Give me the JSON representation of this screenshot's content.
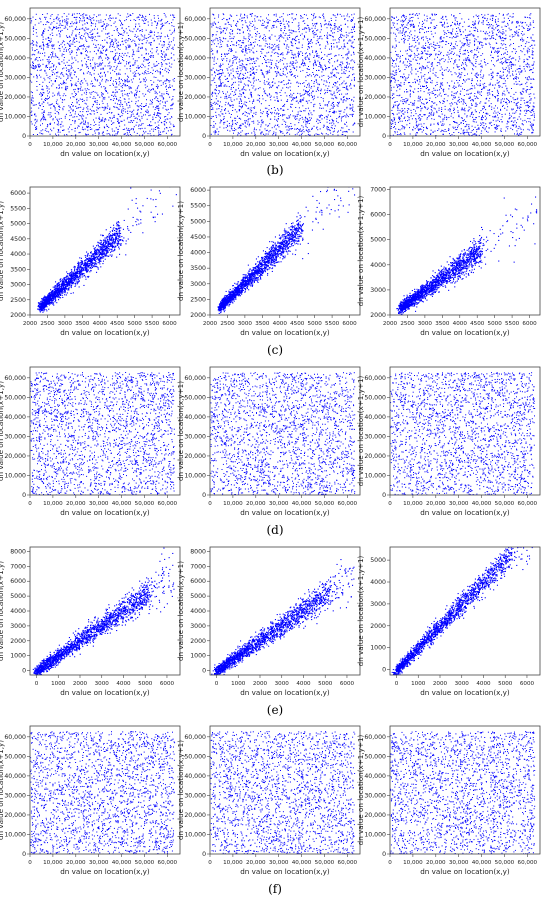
{
  "figure": {
    "rows": [
      {
        "label": "(b)"
      },
      {
        "label": "(c)"
      },
      {
        "label": "(d)"
      },
      {
        "label": "(e)"
      },
      {
        "label": "(f)"
      }
    ]
  },
  "chart_data": [
    {
      "id": "b1",
      "type": "scatter",
      "distribution": "uniform",
      "point_color": "#0000ff",
      "xlabel": "dn value on location(x,y)",
      "ylabel": "dn value on location(x+1,y)",
      "xlim": [
        0,
        65535
      ],
      "ylim": [
        0,
        65535
      ],
      "xticks": [
        0,
        10000,
        20000,
        30000,
        40000,
        50000,
        60000
      ],
      "xtick_labels": [
        "0",
        "10,000",
        "20,000",
        "30,000",
        "40,000",
        "50,000",
        "60,000"
      ],
      "yticks": [
        0,
        10000,
        20000,
        30000,
        40000,
        50000,
        60000
      ],
      "ytick_labels": [
        "0",
        "10,000",
        "20,000",
        "30,000",
        "40,000",
        "50,000",
        "60,000"
      ]
    },
    {
      "id": "b2",
      "type": "scatter",
      "distribution": "uniform",
      "point_color": "#0000ff",
      "xlabel": "dn value on location(x,y)",
      "ylabel": "dn value on location(x,y+1)",
      "xlim": [
        0,
        65535
      ],
      "ylim": [
        0,
        65535
      ],
      "xticks": [
        0,
        10000,
        20000,
        30000,
        40000,
        50000,
        60000
      ],
      "xtick_labels": [
        "0",
        "10,000",
        "20,000",
        "30,000",
        "40,000",
        "50,000",
        "60,000"
      ],
      "yticks": [
        0,
        10000,
        20000,
        30000,
        40000,
        50000,
        60000
      ],
      "ytick_labels": [
        "0",
        "10,000",
        "20,000",
        "30,000",
        "40,000",
        "50,000",
        "60,000"
      ]
    },
    {
      "id": "b3",
      "type": "scatter",
      "distribution": "uniform",
      "point_color": "#0000ff",
      "xlabel": "dn value on location(x,y)",
      "ylabel": "dn value on location(x+1,y+1)",
      "xlim": [
        0,
        65535
      ],
      "ylim": [
        0,
        65535
      ],
      "xticks": [
        0,
        10000,
        20000,
        30000,
        40000,
        50000,
        60000
      ],
      "xtick_labels": [
        "0",
        "10,000",
        "20,000",
        "30,000",
        "40,000",
        "50,000",
        "60,000"
      ],
      "yticks": [
        0,
        10000,
        20000,
        30000,
        40000,
        50000,
        60000
      ],
      "ytick_labels": [
        "0",
        "10,000",
        "20,000",
        "30,000",
        "40,000",
        "50,000",
        "60,000"
      ]
    },
    {
      "id": "c1",
      "type": "scatter",
      "distribution": "correlated",
      "point_color": "#0000ff",
      "xlabel": "dn value on location(x,y)",
      "ylabel": "dn value on location(x+1,y)",
      "xlim": [
        2000,
        6300
      ],
      "ylim": [
        2000,
        6200
      ],
      "xticks": [
        2000,
        2500,
        3000,
        3500,
        4000,
        4500,
        5000,
        5500,
        6000
      ],
      "xtick_labels": [
        "2000",
        "2500",
        "3000",
        "3500",
        "4000",
        "4500",
        "5000",
        "5500",
        "6000"
      ],
      "yticks": [
        2000,
        2500,
        3000,
        3500,
        4000,
        4500,
        5000,
        5500,
        6000
      ],
      "ytick_labels": [
        "2000",
        "2500",
        "3000",
        "3500",
        "4000",
        "4500",
        "5000",
        "5500",
        "6000"
      ],
      "data_range_x": [
        2250,
        6200
      ],
      "trend": {
        "x": [
          2300,
          4600
        ],
        "y": [
          2300,
          4700
        ]
      }
    },
    {
      "id": "c2",
      "type": "scatter",
      "distribution": "correlated",
      "point_color": "#0000ff",
      "xlabel": "dn value on location(x,y)",
      "ylabel": "dn value on location(x,y+1)",
      "xlim": [
        2000,
        6300
      ],
      "ylim": [
        2000,
        6100
      ],
      "xticks": [
        2000,
        2500,
        3000,
        3500,
        4000,
        4500,
        5000,
        5500,
        6000
      ],
      "xtick_labels": [
        "2000",
        "2500",
        "3000",
        "3500",
        "4000",
        "4500",
        "5000",
        "5500",
        "6000"
      ],
      "yticks": [
        2000,
        2500,
        3000,
        3500,
        4000,
        4500,
        5000,
        5500,
        6000
      ],
      "ytick_labels": [
        "2000",
        "2500",
        "3000",
        "3500",
        "4000",
        "4500",
        "5000",
        "5500",
        "6000"
      ],
      "data_range_x": [
        2250,
        6200
      ],
      "trend": {
        "x": [
          2300,
          4600
        ],
        "y": [
          2300,
          4800
        ]
      }
    },
    {
      "id": "c3",
      "type": "scatter",
      "distribution": "correlated",
      "point_color": "#0000ff",
      "xlabel": "dn value on location(x,y)",
      "ylabel": "dn value on location(x+1,y+1)",
      "xlim": [
        2000,
        6300
      ],
      "ylim": [
        2000,
        7100
      ],
      "xticks": [
        2000,
        2500,
        3000,
        3500,
        4000,
        4500,
        5000,
        5500,
        6000
      ],
      "xtick_labels": [
        "2000",
        "2500",
        "3000",
        "3500",
        "4000",
        "4500",
        "5000",
        "5500",
        "6000"
      ],
      "yticks": [
        2000,
        3000,
        4000,
        5000,
        6000,
        7000
      ],
      "ytick_labels": [
        "2000",
        "3000",
        "4000",
        "5000",
        "6000",
        "7000"
      ],
      "data_range_x": [
        2250,
        6200
      ],
      "trend": {
        "x": [
          2300,
          4600
        ],
        "y": [
          2300,
          4600
        ]
      }
    },
    {
      "id": "d1",
      "type": "scatter",
      "distribution": "uniform",
      "point_color": "#0000ff",
      "xlabel": "dn value on location(x,y)",
      "ylabel": "dn value on location(x+1,y)",
      "xlim": [
        0,
        65535
      ],
      "ylim": [
        0,
        65535
      ],
      "xticks": [
        0,
        10000,
        20000,
        30000,
        40000,
        50000,
        60000
      ],
      "xtick_labels": [
        "0",
        "10,000",
        "20,000",
        "30,000",
        "40,000",
        "50,000",
        "60,000"
      ],
      "yticks": [
        0,
        10000,
        20000,
        30000,
        40000,
        50000,
        60000
      ],
      "ytick_labels": [
        "0",
        "10,000",
        "20,000",
        "30,000",
        "40,000",
        "50,000",
        "60,000"
      ]
    },
    {
      "id": "d2",
      "type": "scatter",
      "distribution": "uniform",
      "point_color": "#0000ff",
      "xlabel": "dn value on location(x,y)",
      "ylabel": "dn value on location(x,y+1)",
      "xlim": [
        0,
        65535
      ],
      "ylim": [
        0,
        65535
      ],
      "xticks": [
        0,
        10000,
        20000,
        30000,
        40000,
        50000,
        60000
      ],
      "xtick_labels": [
        "0",
        "10,000",
        "20,000",
        "30,000",
        "40,000",
        "50,000",
        "60,000"
      ],
      "yticks": [
        0,
        10000,
        20000,
        30000,
        40000,
        50000,
        60000
      ],
      "ytick_labels": [
        "0",
        "10,000",
        "20,000",
        "30,000",
        "40,000",
        "50,000",
        "60,000"
      ]
    },
    {
      "id": "d3",
      "type": "scatter",
      "distribution": "uniform",
      "point_color": "#0000ff",
      "xlabel": "dn value on location(x,y)",
      "ylabel": "dn value on location(x+1,y+1)",
      "xlim": [
        0,
        65535
      ],
      "ylim": [
        0,
        65535
      ],
      "xticks": [
        0,
        10000,
        20000,
        30000,
        40000,
        50000,
        60000
      ],
      "xtick_labels": [
        "0",
        "10,000",
        "20,000",
        "30,000",
        "40,000",
        "50,000",
        "60,000"
      ],
      "yticks": [
        0,
        10000,
        20000,
        30000,
        40000,
        50000,
        60000
      ],
      "ytick_labels": [
        "0",
        "10,000",
        "20,000",
        "30,000",
        "40,000",
        "50,000",
        "60,000"
      ]
    },
    {
      "id": "e1",
      "type": "scatter",
      "distribution": "correlated",
      "point_color": "#0000ff",
      "xlabel": "dn value on location(x,y)",
      "ylabel": "dn value on location(x+1,y)",
      "xlim": [
        -300,
        6600
      ],
      "ylim": [
        -300,
        8300
      ],
      "xticks": [
        0,
        1000,
        2000,
        3000,
        4000,
        5000,
        6000
      ],
      "xtick_labels": [
        "0",
        "1000",
        "2000",
        "3000",
        "4000",
        "5000",
        "6000"
      ],
      "yticks": [
        0,
        1000,
        2000,
        3000,
        4000,
        5000,
        6000,
        7000,
        8000
      ],
      "ytick_labels": [
        "0",
        "1000",
        "2000",
        "3000",
        "4000",
        "5000",
        "6000",
        "7000",
        "8000"
      ],
      "data_range_x": [
        0,
        6300
      ],
      "trend": {
        "x": [
          0,
          5200
        ],
        "y": [
          0,
          5300
        ]
      }
    },
    {
      "id": "e2",
      "type": "scatter",
      "distribution": "correlated",
      "point_color": "#0000ff",
      "xlabel": "dn value on location(x,y)",
      "ylabel": "dn value on location(x,y+1)",
      "xlim": [
        -300,
        6600
      ],
      "ylim": [
        -300,
        8300
      ],
      "xticks": [
        0,
        1000,
        2000,
        3000,
        4000,
        5000,
        6000
      ],
      "xtick_labels": [
        "0",
        "1000",
        "2000",
        "3000",
        "4000",
        "5000",
        "6000"
      ],
      "yticks": [
        0,
        1000,
        2000,
        3000,
        4000,
        5000,
        6000,
        7000,
        8000
      ],
      "ytick_labels": [
        "0",
        "1000",
        "2000",
        "3000",
        "4000",
        "5000",
        "6000",
        "7000",
        "8000"
      ],
      "data_range_x": [
        0,
        6300
      ],
      "trend": {
        "x": [
          0,
          5200
        ],
        "y": [
          0,
          5300
        ]
      }
    },
    {
      "id": "e3",
      "type": "scatter",
      "distribution": "correlated",
      "point_color": "#0000ff",
      "xlabel": "dn value on location(x,y)",
      "ylabel": "dn value on location(x+1,y+1)",
      "xlim": [
        -300,
        6600
      ],
      "ylim": [
        -250,
        5600
      ],
      "xticks": [
        0,
        1000,
        2000,
        3000,
        4000,
        5000,
        6000
      ],
      "xtick_labels": [
        "0",
        "1000",
        "2000",
        "3000",
        "4000",
        "5000",
        "6000"
      ],
      "yticks": [
        0,
        1000,
        2000,
        3000,
        4000,
        5000
      ],
      "ytick_labels": [
        "0",
        "1000",
        "2000",
        "3000",
        "4000",
        "5000"
      ],
      "data_range_x": [
        0,
        6300
      ],
      "trend": {
        "x": [
          0,
          5200
        ],
        "y": [
          0,
          5200
        ]
      }
    },
    {
      "id": "f1",
      "type": "scatter",
      "distribution": "uniform",
      "point_color": "#0000ff",
      "xlabel": "dn value on location(x,y)",
      "ylabel": "dn value on location(x+1,y)",
      "xlim": [
        0,
        65535
      ],
      "ylim": [
        0,
        65535
      ],
      "xticks": [
        0,
        10000,
        20000,
        30000,
        40000,
        50000,
        60000
      ],
      "xtick_labels": [
        "0",
        "10,000",
        "20,000",
        "30,000",
        "40,000",
        "50,000",
        "60,000"
      ],
      "yticks": [
        0,
        10000,
        20000,
        30000,
        40000,
        50000,
        60000
      ],
      "ytick_labels": [
        "0",
        "10,000",
        "20,000",
        "30,000",
        "40,000",
        "50,000",
        "60,000"
      ]
    },
    {
      "id": "f2",
      "type": "scatter",
      "distribution": "uniform",
      "point_color": "#0000ff",
      "xlabel": "dn value on location(x,y)",
      "ylabel": "dn value on location(x,y+1)",
      "xlim": [
        0,
        65535
      ],
      "ylim": [
        0,
        65535
      ],
      "xticks": [
        0,
        10000,
        20000,
        30000,
        40000,
        50000,
        60000
      ],
      "xtick_labels": [
        "0",
        "10,000",
        "20,000",
        "30,000",
        "40,000",
        "50,000",
        "60,000"
      ],
      "yticks": [
        0,
        10000,
        20000,
        30000,
        40000,
        50000,
        60000
      ],
      "ytick_labels": [
        "0",
        "10,000",
        "20,000",
        "30,000",
        "40,000",
        "50,000",
        "60,000"
      ]
    },
    {
      "id": "f3",
      "type": "scatter",
      "distribution": "uniform",
      "point_color": "#0000ff",
      "xlabel": "dn value on location(x,y)",
      "ylabel": "dn value on location(x+1,y+1)",
      "xlim": [
        0,
        65535
      ],
      "ylim": [
        0,
        65535
      ],
      "xticks": [
        0,
        10000,
        20000,
        30000,
        40000,
        50000,
        60000
      ],
      "xtick_labels": [
        "0",
        "10,000",
        "20,000",
        "30,000",
        "40,000",
        "50,000",
        "60,000"
      ],
      "yticks": [
        0,
        10000,
        20000,
        30000,
        40000,
        50000,
        60000
      ],
      "ytick_labels": [
        "0",
        "10,000",
        "20,000",
        "30,000",
        "40,000",
        "50,000",
        "60,000"
      ]
    }
  ]
}
